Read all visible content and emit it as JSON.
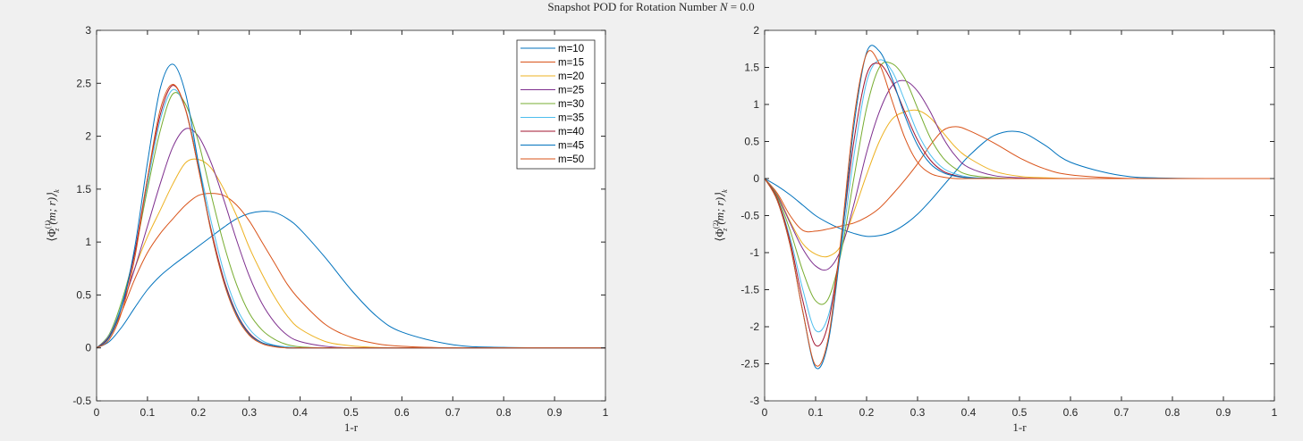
{
  "title": {
    "prefix": "Snapshot POD for Rotation Number ",
    "var": "N",
    "suffix": " = 0.0"
  },
  "colors": [
    "#0072BD",
    "#D95319",
    "#EDB120",
    "#7E2F8E",
    "#77AC30",
    "#4DBEEE",
    "#A2142F",
    "#0072BD",
    "#D95319"
  ],
  "chart_data": [
    {
      "type": "line",
      "xlabel": "1-r",
      "ylabel": {
        "open": "⟨Φ",
        "sub": "z",
        "sup": "(1)",
        "args": "(m; r)⟩",
        "sub2": "k"
      },
      "xlim": [
        0,
        1
      ],
      "ylim": [
        -0.5,
        3
      ],
      "xticks": [
        "0",
        "0.1",
        "0.2",
        "0.3",
        "0.4",
        "0.5",
        "0.6",
        "0.7",
        "0.8",
        "0.9",
        "1"
      ],
      "yticks": [
        "-0.5",
        "0",
        "0.5",
        "1",
        "1.5",
        "2",
        "2.5",
        "3"
      ],
      "grid": false,
      "legend_position": "top-right",
      "x": [
        0,
        0.025,
        0.05,
        0.075,
        0.1,
        0.125,
        0.15,
        0.175,
        0.2,
        0.225,
        0.25,
        0.275,
        0.3,
        0.325,
        0.35,
        0.375,
        0.4,
        0.45,
        0.5,
        0.55,
        0.6,
        0.7,
        0.8,
        1.0
      ],
      "series": [
        {
          "name": "m=10",
          "values": [
            0,
            0.06,
            0.2,
            0.38,
            0.55,
            0.68,
            0.78,
            0.87,
            0.96,
            1.05,
            1.14,
            1.22,
            1.27,
            1.29,
            1.28,
            1.22,
            1.12,
            0.85,
            0.55,
            0.3,
            0.15,
            0.03,
            0.005,
            0
          ]
        },
        {
          "name": "m=15",
          "values": [
            0,
            0.1,
            0.35,
            0.65,
            0.9,
            1.08,
            1.22,
            1.35,
            1.44,
            1.46,
            1.44,
            1.35,
            1.2,
            1.0,
            0.8,
            0.6,
            0.45,
            0.22,
            0.1,
            0.04,
            0.015,
            0,
            0,
            0
          ]
        },
        {
          "name": "m=20",
          "values": [
            0,
            0.12,
            0.4,
            0.75,
            1.05,
            1.3,
            1.55,
            1.75,
            1.78,
            1.7,
            1.5,
            1.25,
            0.95,
            0.7,
            0.48,
            0.3,
            0.18,
            0.06,
            0.02,
            0.005,
            0,
            0,
            0,
            0
          ]
        },
        {
          "name": "m=25",
          "values": [
            0,
            0.12,
            0.4,
            0.75,
            1.15,
            1.55,
            1.9,
            2.07,
            2.0,
            1.75,
            1.4,
            1.02,
            0.68,
            0.42,
            0.24,
            0.12,
            0.06,
            0.015,
            0,
            0,
            0,
            0,
            0,
            0
          ]
        },
        {
          "name": "m=30",
          "values": [
            0,
            0.13,
            0.45,
            0.9,
            1.5,
            2.05,
            2.4,
            2.3,
            1.95,
            1.45,
            0.98,
            0.6,
            0.33,
            0.17,
            0.08,
            0.03,
            0.01,
            0,
            0,
            0,
            0,
            0,
            0,
            0
          ]
        },
        {
          "name": "m=35",
          "values": [
            0,
            0.12,
            0.42,
            0.9,
            1.55,
            2.15,
            2.44,
            2.25,
            1.75,
            1.2,
            0.72,
            0.38,
            0.18,
            0.07,
            0.025,
            0.01,
            0,
            0,
            0,
            0,
            0,
            0,
            0,
            0
          ]
        },
        {
          "name": "m=40",
          "values": [
            0,
            0.11,
            0.4,
            0.9,
            1.6,
            2.2,
            2.48,
            2.25,
            1.7,
            1.12,
            0.65,
            0.33,
            0.14,
            0.05,
            0.02,
            0,
            0,
            0,
            0,
            0,
            0,
            0,
            0,
            0
          ]
        },
        {
          "name": "m=45",
          "values": [
            0,
            0.1,
            0.4,
            0.95,
            1.75,
            2.45,
            2.68,
            2.4,
            1.75,
            1.1,
            0.63,
            0.32,
            0.13,
            0.05,
            0.02,
            0,
            0,
            0,
            0,
            0,
            0,
            0,
            0,
            0
          ]
        },
        {
          "name": "m=50",
          "values": [
            0,
            0.08,
            0.35,
            0.85,
            1.6,
            2.25,
            2.49,
            2.25,
            1.7,
            1.1,
            0.62,
            0.3,
            0.12,
            0.04,
            0.01,
            0,
            0,
            0,
            0,
            0,
            0,
            0,
            0,
            0
          ]
        }
      ]
    },
    {
      "type": "line",
      "xlabel": "1-r",
      "ylabel": {
        "open": "⟨Φ",
        "sub": "z",
        "sup": "(2)",
        "args": "(m; r)⟩",
        "sub2": "k"
      },
      "xlim": [
        0,
        1
      ],
      "ylim": [
        -3,
        2
      ],
      "xticks": [
        "0",
        "0.1",
        "0.2",
        "0.3",
        "0.4",
        "0.5",
        "0.6",
        "0.7",
        "0.8",
        "0.9",
        "1"
      ],
      "yticks": [
        "-3",
        "-2.5",
        "-2",
        "-1.5",
        "-1",
        "-0.5",
        "0",
        "0.5",
        "1",
        "1.5",
        "2"
      ],
      "grid": false,
      "x": [
        0,
        0.025,
        0.05,
        0.075,
        0.1,
        0.125,
        0.15,
        0.175,
        0.2,
        0.225,
        0.25,
        0.275,
        0.3,
        0.325,
        0.35,
        0.375,
        0.4,
        0.45,
        0.5,
        0.55,
        0.6,
        0.7,
        0.8,
        1.0
      ],
      "series": [
        {
          "name": "m=10",
          "values": [
            0,
            -0.1,
            -0.22,
            -0.36,
            -0.5,
            -0.6,
            -0.68,
            -0.74,
            -0.78,
            -0.77,
            -0.72,
            -0.62,
            -0.48,
            -0.3,
            -0.1,
            0.1,
            0.3,
            0.58,
            0.63,
            0.45,
            0.22,
            0.04,
            0.005,
            0
          ]
        },
        {
          "name": "m=15",
          "values": [
            0,
            -0.2,
            -0.5,
            -0.7,
            -0.71,
            -0.68,
            -0.64,
            -0.6,
            -0.52,
            -0.4,
            -0.22,
            -0.02,
            0.2,
            0.45,
            0.65,
            0.7,
            0.65,
            0.48,
            0.28,
            0.13,
            0.05,
            0.005,
            0,
            0
          ]
        },
        {
          "name": "m=20",
          "values": [
            0,
            -0.22,
            -0.58,
            -0.88,
            -1.02,
            -1.05,
            -0.9,
            -0.45,
            0.05,
            0.5,
            0.8,
            0.9,
            0.92,
            0.82,
            0.62,
            0.42,
            0.28,
            0.1,
            0.03,
            0.01,
            0,
            0,
            0,
            0
          ]
        },
        {
          "name": "m=25",
          "values": [
            0,
            -0.23,
            -0.6,
            -0.95,
            -1.18,
            -1.22,
            -0.95,
            -0.35,
            0.35,
            0.9,
            1.25,
            1.32,
            1.18,
            0.9,
            0.55,
            0.3,
            0.15,
            0.04,
            0.01,
            0,
            0,
            0,
            0,
            0
          ]
        },
        {
          "name": "m=30",
          "values": [
            0,
            -0.25,
            -0.7,
            -1.25,
            -1.65,
            -1.62,
            -1.0,
            0.0,
            0.95,
            1.5,
            1.55,
            1.35,
            0.95,
            0.55,
            0.28,
            0.13,
            0.05,
            0.01,
            0,
            0,
            0,
            0,
            0,
            0
          ]
        },
        {
          "name": "m=35",
          "values": [
            0,
            -0.28,
            -0.8,
            -1.5,
            -2.05,
            -1.85,
            -0.95,
            0.3,
            1.3,
            1.6,
            1.45,
            1.05,
            0.62,
            0.32,
            0.14,
            0.06,
            0.02,
            0,
            0,
            0,
            0,
            0,
            0,
            0
          ]
        },
        {
          "name": "m=40",
          "values": [
            0,
            -0.28,
            -0.85,
            -1.65,
            -2.25,
            -1.95,
            -0.85,
            0.5,
            1.4,
            1.55,
            1.3,
            0.9,
            0.52,
            0.25,
            0.1,
            0.04,
            0.01,
            0,
            0,
            0,
            0,
            0,
            0,
            0
          ]
        },
        {
          "name": "m=45",
          "values": [
            0,
            -0.3,
            -0.9,
            -1.8,
            -2.55,
            -2.2,
            -0.9,
            0.7,
            1.7,
            1.72,
            1.35,
            0.85,
            0.45,
            0.2,
            0.08,
            0.03,
            0.01,
            0,
            0,
            0,
            0,
            0,
            0,
            0
          ]
        },
        {
          "name": "m=50",
          "values": [
            0,
            -0.3,
            -0.9,
            -1.8,
            -2.52,
            -2.15,
            -0.8,
            0.8,
            1.68,
            1.55,
            1.05,
            0.55,
            0.22,
            0.07,
            0.02,
            0,
            0,
            0,
            0,
            0,
            0,
            0,
            0,
            0
          ]
        }
      ]
    }
  ]
}
